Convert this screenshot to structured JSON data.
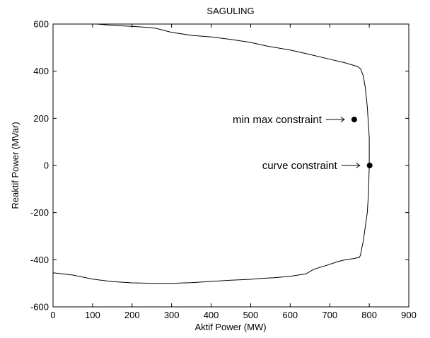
{
  "chart_data": {
    "type": "line",
    "title": "SAGULING",
    "xlabel": "Aktif Power (MW)",
    "ylabel": "Reaktif Power (MVar)",
    "xlim": [
      0,
      900
    ],
    "ylim": [
      -600,
      600
    ],
    "xticks": [
      0,
      100,
      200,
      300,
      400,
      500,
      600,
      700,
      800,
      900
    ],
    "yticks": [
      -600,
      -400,
      -200,
      0,
      200,
      400,
      600
    ],
    "grid": false,
    "series": [
      {
        "x": [
          0,
          60,
          110,
          160,
          200,
          240,
          260,
          300,
          350,
          400,
          450,
          500,
          540,
          600,
          640,
          700,
          740,
          770,
          778,
          785,
          790,
          795,
          800,
          800,
          798,
          795,
          790,
          785,
          780,
          778,
          775,
          760,
          740,
          720,
          690,
          660,
          640,
          600,
          560,
          520,
          500,
          450,
          400,
          350,
          300,
          260,
          200,
          150,
          100,
          50,
          0
        ],
        "y": [
          600,
          600,
          600,
          593,
          590,
          586,
          582,
          565,
          552,
          545,
          535,
          522,
          507,
          490,
          475,
          451,
          435,
          420,
          410,
          380,
          330,
          250,
          120,
          0,
          -120,
          -200,
          -260,
          -320,
          -360,
          -380,
          -390,
          -395,
          -400,
          -408,
          -425,
          -440,
          -460,
          -470,
          -476,
          -480,
          -483,
          -487,
          -492,
          -497,
          -500,
          -500,
          -498,
          -493,
          -482,
          -465,
          -455
        ]
      }
    ],
    "points": [
      {
        "x": 762,
        "y": 195,
        "label": "min max constraint"
      },
      {
        "x": 801,
        "y": 0,
        "label": "curve constraint"
      }
    ]
  }
}
